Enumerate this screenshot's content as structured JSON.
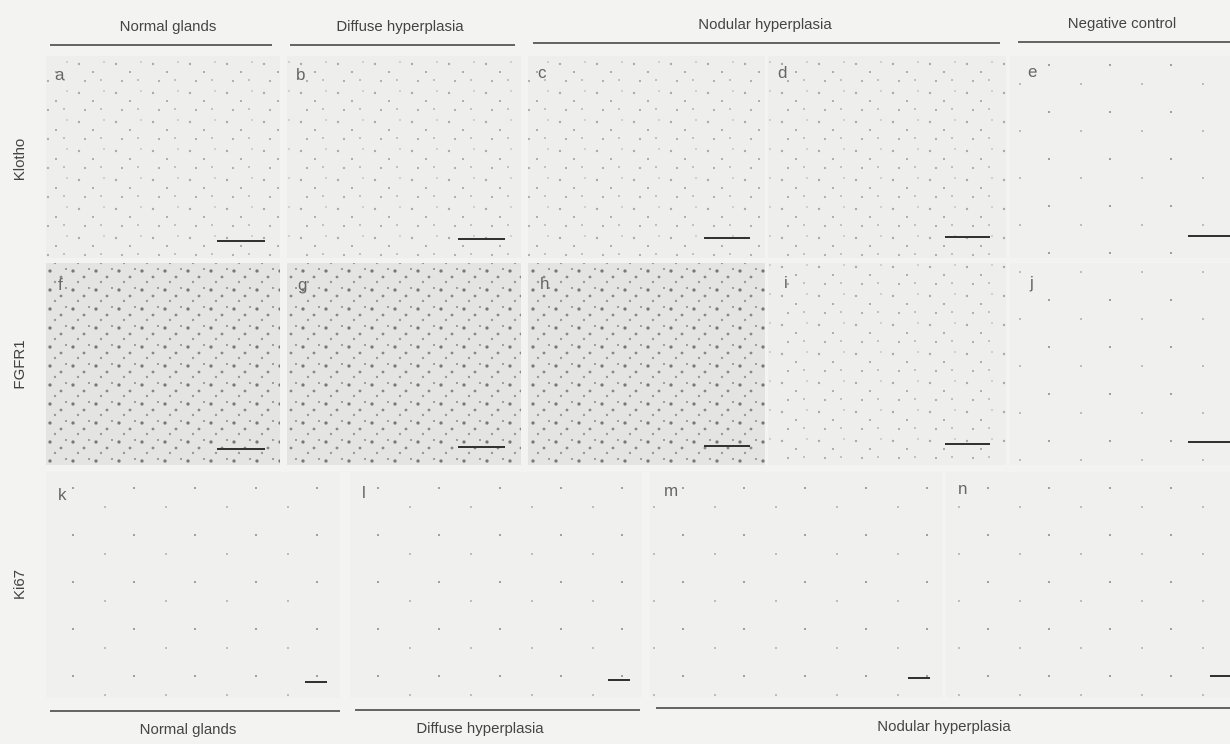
{
  "column_headers": [
    "Normal glands",
    "Diffuse hyperplasia",
    "Nodular hyperplasia",
    "Negative control"
  ],
  "row_labels": [
    "Klotho",
    "FGFR1",
    "Ki67"
  ],
  "panel_labels": [
    [
      "a",
      "b",
      "c",
      "d",
      "e"
    ],
    [
      "f",
      "g",
      "h",
      "i",
      "j"
    ],
    [
      "k",
      "l",
      "m",
      "n"
    ]
  ],
  "bottom_headers": [
    "Normal glands",
    "Diffuse hyperplasia",
    "Nodular hyperplasia"
  ]
}
